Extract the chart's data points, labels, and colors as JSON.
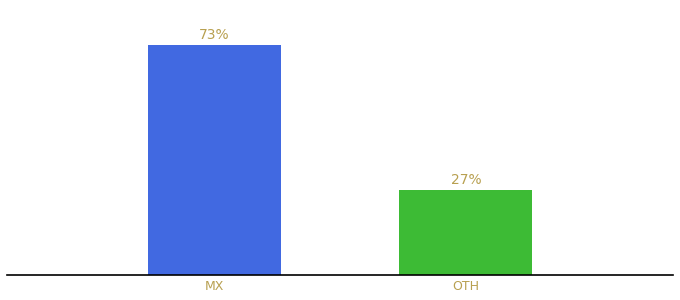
{
  "categories": [
    "MX",
    "OTH"
  ],
  "values": [
    73,
    27
  ],
  "bar_colors": [
    "#4169e1",
    "#3dbb35"
  ],
  "bar_labels": [
    "73%",
    "27%"
  ],
  "label_color": "#b8a050",
  "tick_color": "#b8a050",
  "ylim": [
    0,
    85
  ],
  "background_color": "#ffffff",
  "label_fontsize": 10,
  "tick_fontsize": 9,
  "bar_width": 0.18,
  "x_positions": [
    0.33,
    0.67
  ],
  "xlim": [
    0.05,
    0.95
  ]
}
